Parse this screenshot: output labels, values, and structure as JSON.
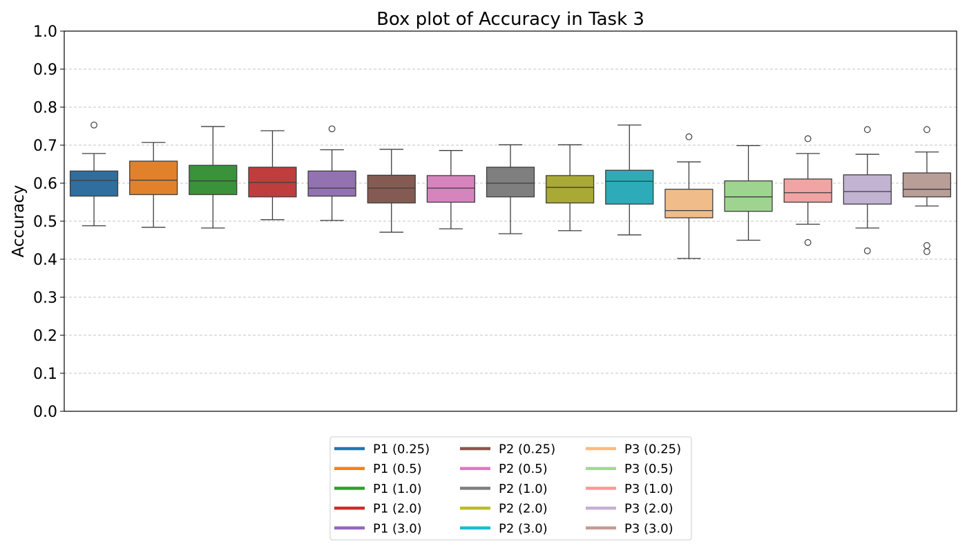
{
  "chart_data": {
    "type": "box",
    "title": "Box plot of Accuracy in Task 3",
    "xlabel": "",
    "ylabel": "Accuracy",
    "ylim": [
      0,
      1.0
    ],
    "yticks": [
      "0.0",
      "0.1",
      "0.2",
      "0.3",
      "0.4",
      "0.5",
      "0.6",
      "0.7",
      "0.8",
      "0.9",
      "1.0"
    ],
    "grid": "horizontal dashed",
    "legend_placement": "below plot, 3 columns",
    "series": [
      {
        "name": "P1 (0.25)",
        "color": "#2f6e9f",
        "legend_color": "#1f77b4",
        "q1": 0.566,
        "median": 0.607,
        "q3": 0.632,
        "whisker_low": 0.488,
        "whisker_high": 0.678,
        "outliers": [
          0.753
        ]
      },
      {
        "name": "P1 (0.5)",
        "color": "#e1812c",
        "legend_color": "#ff7f0e",
        "q1": 0.57,
        "median": 0.608,
        "q3": 0.658,
        "whisker_low": 0.484,
        "whisker_high": 0.707,
        "outliers": []
      },
      {
        "name": "P1 (1.0)",
        "color": "#3a923a",
        "legend_color": "#2ca02c",
        "q1": 0.57,
        "median": 0.606,
        "q3": 0.647,
        "whisker_low": 0.482,
        "whisker_high": 0.749,
        "outliers": []
      },
      {
        "name": "P1 (2.0)",
        "color": "#c03d3e",
        "legend_color": "#d62728",
        "q1": 0.564,
        "median": 0.602,
        "q3": 0.642,
        "whisker_low": 0.504,
        "whisker_high": 0.738,
        "outliers": []
      },
      {
        "name": "P1 (3.0)",
        "color": "#9372b2",
        "legend_color": "#9467bd",
        "q1": 0.566,
        "median": 0.587,
        "q3": 0.632,
        "whisker_low": 0.502,
        "whisker_high": 0.688,
        "outliers": [
          0.743
        ]
      },
      {
        "name": "P2 (0.25)",
        "color": "#845b53",
        "legend_color": "#8c564b",
        "q1": 0.548,
        "median": 0.587,
        "q3": 0.621,
        "whisker_low": 0.471,
        "whisker_high": 0.689,
        "outliers": []
      },
      {
        "name": "P2 (0.5)",
        "color": "#d684bd",
        "legend_color": "#e377c2",
        "q1": 0.55,
        "median": 0.587,
        "q3": 0.62,
        "whisker_low": 0.48,
        "whisker_high": 0.686,
        "outliers": []
      },
      {
        "name": "P2 (1.0)",
        "color": "#7f7f7f",
        "legend_color": "#7f7f7f",
        "q1": 0.564,
        "median": 0.6,
        "q3": 0.642,
        "whisker_low": 0.467,
        "whisker_high": 0.701,
        "outliers": []
      },
      {
        "name": "P2 (2.0)",
        "color": "#a9aa35",
        "legend_color": "#bcbd22",
        "q1": 0.548,
        "median": 0.589,
        "q3": 0.62,
        "whisker_low": 0.475,
        "whisker_high": 0.701,
        "outliers": []
      },
      {
        "name": "P2 (3.0)",
        "color": "#2eabb8",
        "legend_color": "#17becf",
        "q1": 0.545,
        "median": 0.605,
        "q3": 0.634,
        "whisker_low": 0.464,
        "whisker_high": 0.753,
        "outliers": []
      },
      {
        "name": "P3 (0.25)",
        "color": "#f0bc89",
        "legend_color": "#ffbb78",
        "q1": 0.509,
        "median": 0.528,
        "q3": 0.584,
        "whisker_low": 0.402,
        "whisker_high": 0.656,
        "outliers": [
          0.722
        ]
      },
      {
        "name": "P3 (0.5)",
        "color": "#9fd490",
        "legend_color": "#98df8a",
        "q1": 0.526,
        "median": 0.564,
        "q3": 0.606,
        "whisker_low": 0.45,
        "whisker_high": 0.699,
        "outliers": []
      },
      {
        "name": "P3 (1.0)",
        "color": "#f0a4a3",
        "legend_color": "#ff9896",
        "q1": 0.55,
        "median": 0.575,
        "q3": 0.611,
        "whisker_low": 0.492,
        "whisker_high": 0.678,
        "outliers": [
          0.717,
          0.444
        ]
      },
      {
        "name": "P3 (2.0)",
        "color": "#c1b3d1",
        "legend_color": "#c5b0d5",
        "q1": 0.545,
        "median": 0.578,
        "q3": 0.622,
        "whisker_low": 0.482,
        "whisker_high": 0.676,
        "outliers": [
          0.741,
          0.422
        ]
      },
      {
        "name": "P3 (3.0)",
        "color": "#b99d97",
        "legend_color": "#c49c94",
        "q1": 0.564,
        "median": 0.584,
        "q3": 0.627,
        "whisker_low": 0.54,
        "whisker_high": 0.682,
        "outliers": [
          0.741,
          0.436,
          0.42
        ]
      }
    ]
  }
}
